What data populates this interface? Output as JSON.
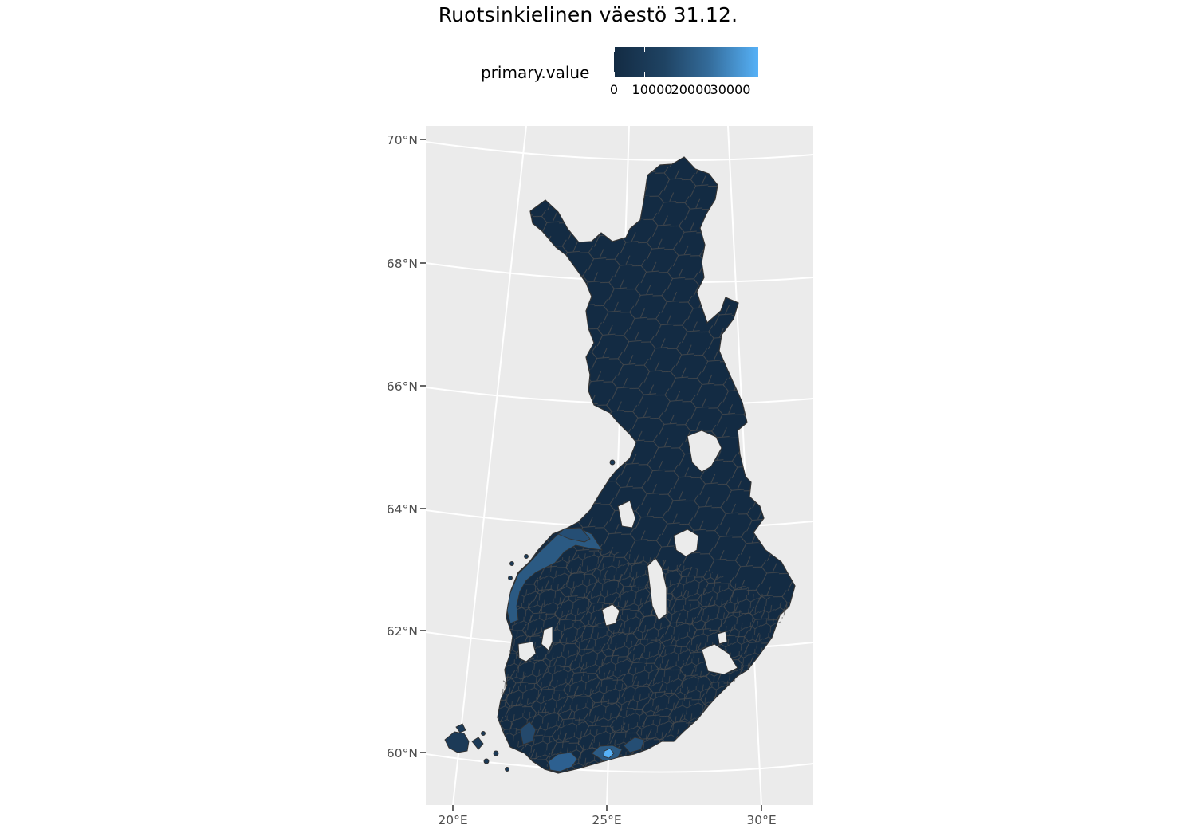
{
  "title": "Ruotsinkielinen väestö 31.12.",
  "legend": {
    "title": "primary.value",
    "colors": {
      "low": "#132b43",
      "high": "#56b1f7"
    },
    "ticks": [
      {
        "value": 0,
        "label": "0"
      },
      {
        "value": 10000,
        "label": "10000"
      },
      {
        "value": 20000,
        "label": "20000"
      },
      {
        "value": 30000,
        "label": "30000"
      }
    ],
    "range": [
      0,
      36000
    ]
  },
  "axes": {
    "latitude_labels": [
      "60°N",
      "62°N",
      "64°N",
      "66°N",
      "68°N",
      "70°N"
    ],
    "longitude_labels": [
      "20°E",
      "25°E",
      "30°E"
    ]
  },
  "colors": {
    "panel_background": "#ebebeb",
    "grid": "#ffffff",
    "region_fill": "#132b43",
    "region_border": "#4d4d4d",
    "mid_value": "#2b5a83",
    "high_value": "#56b1f7"
  }
}
